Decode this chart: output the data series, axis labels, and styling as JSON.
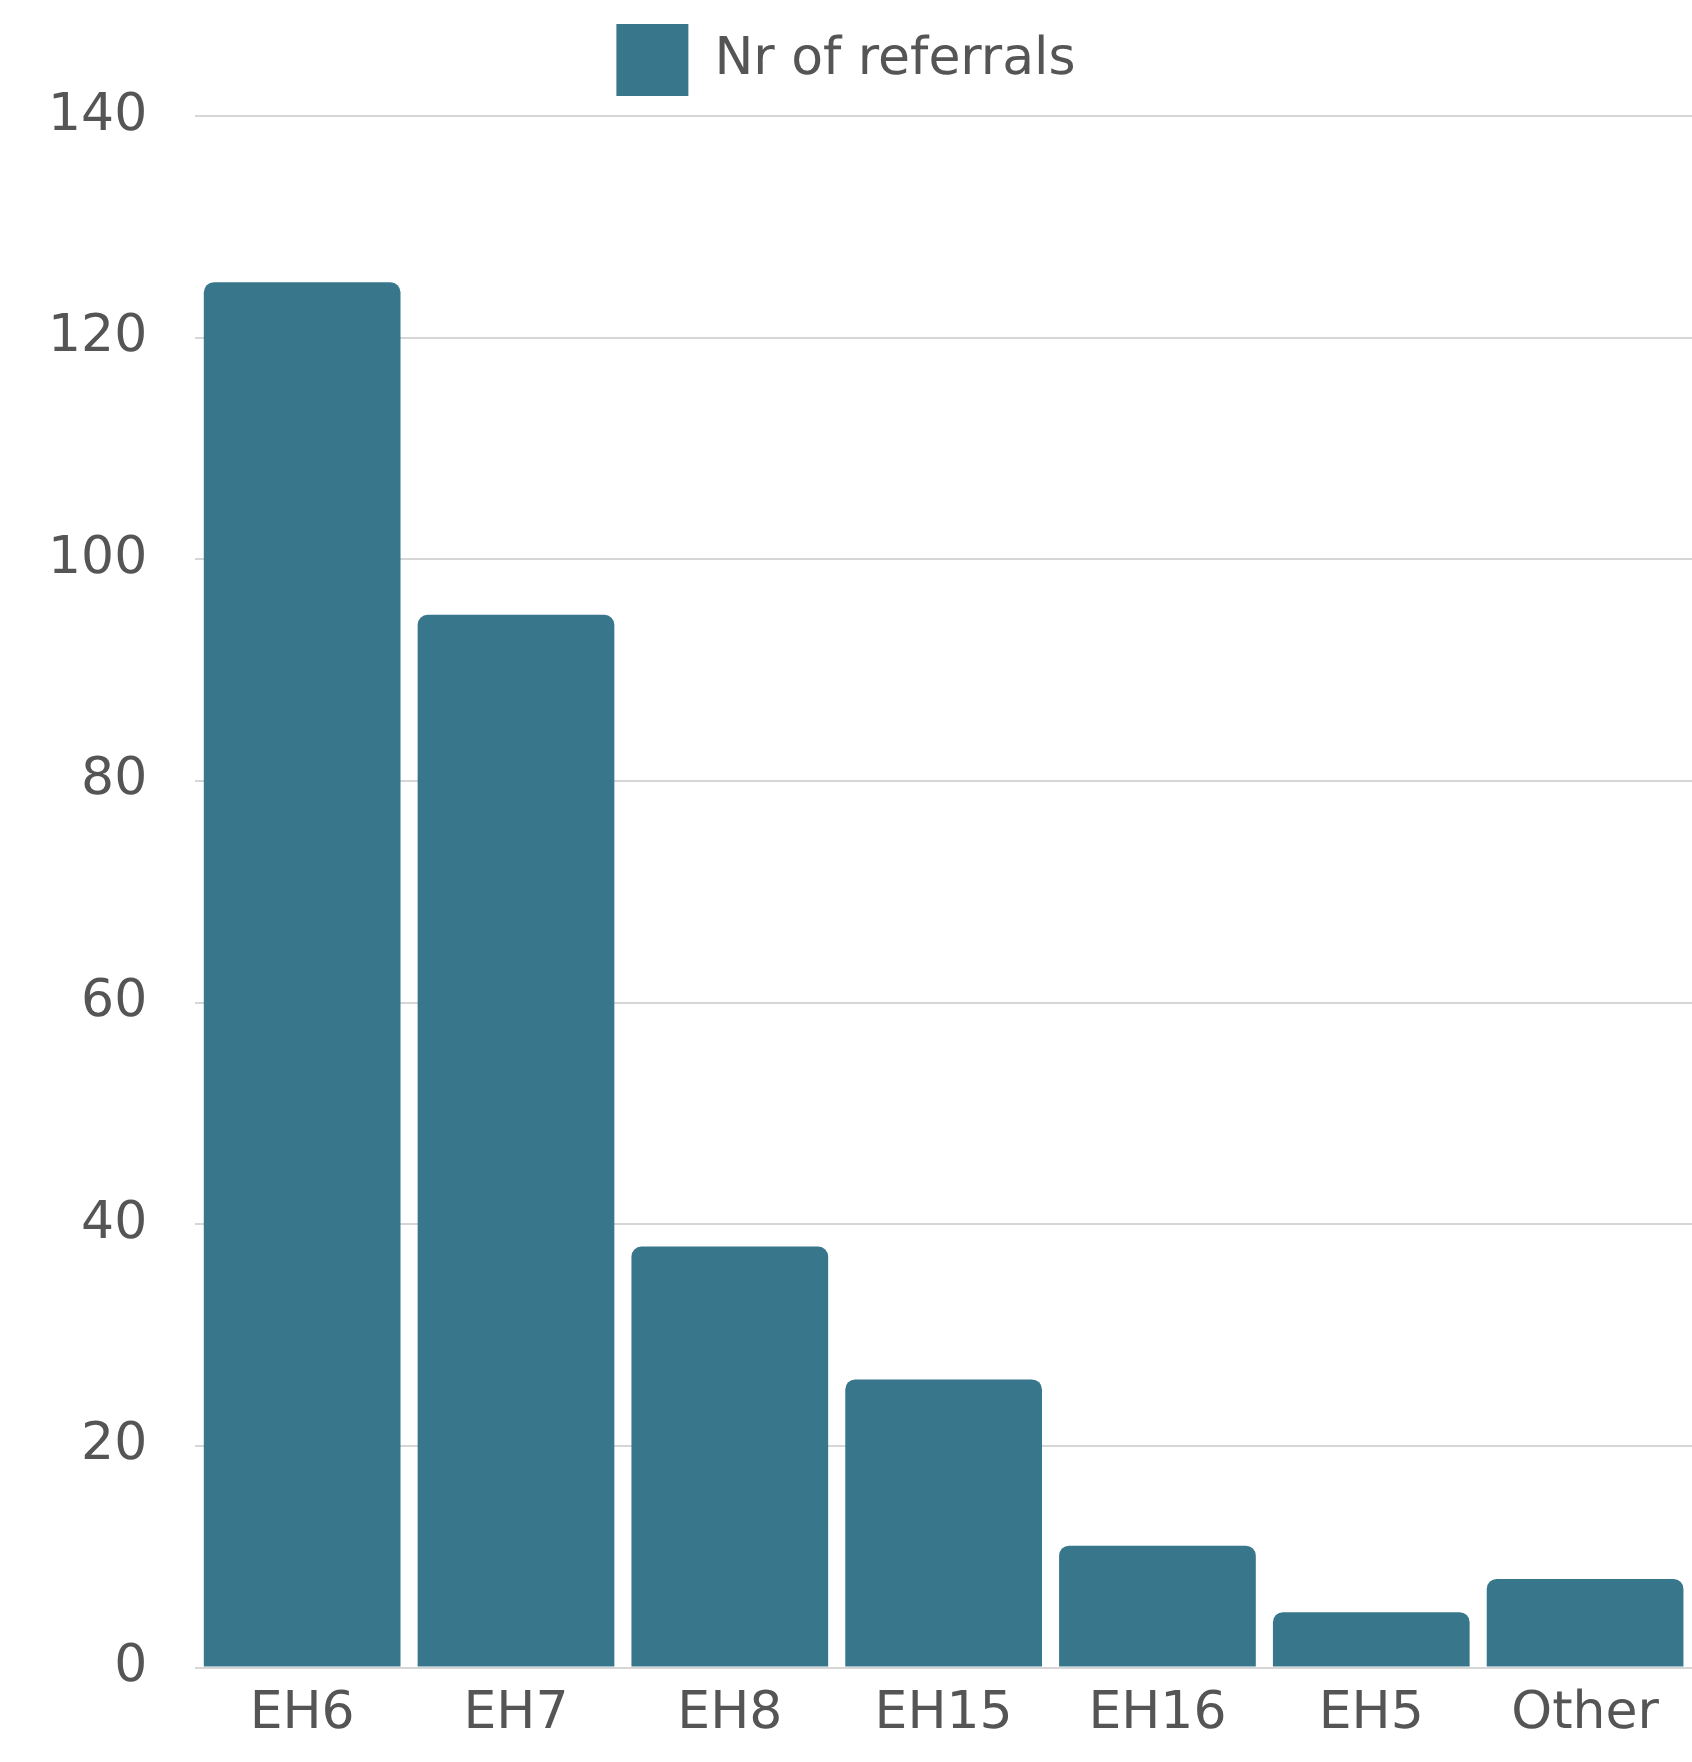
{
  "chart_data": {
    "type": "bar",
    "categories": [
      "EH6",
      "EH7",
      "EH8",
      "EH15",
      "EH16",
      "EH5",
      "Other"
    ],
    "series": [
      {
        "name": "Nr of referrals",
        "color": "#37768b",
        "values": [
          125,
          95,
          38,
          26,
          11,
          5,
          8
        ]
      }
    ],
    "ylim": [
      0,
      140
    ],
    "yticks": [
      0,
      20,
      40,
      60,
      80,
      100,
      120,
      140
    ],
    "grid": "y",
    "legend": "top"
  }
}
